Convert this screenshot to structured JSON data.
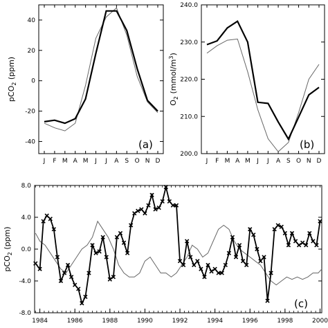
{
  "chart_data": [
    {
      "type": "line",
      "panel_tag": "(a)",
      "ylabel_main": "pCO",
      "ylabel_sub": "2",
      "ylabel_tail": " (ppm)",
      "categories": [
        "J",
        "F",
        "M",
        "A",
        "M",
        "J",
        "J",
        "A",
        "S",
        "O",
        "N",
        "D"
      ],
      "ylim": [
        -48,
        50
      ],
      "yticks": [
        -40,
        -20,
        0,
        20,
        40
      ],
      "series": [
        {
          "style": "thick",
          "color": "#000000",
          "values": [
            -27,
            -26,
            -28,
            -25,
            -12,
            18,
            46,
            46,
            33,
            8,
            -13,
            -20
          ]
        },
        {
          "style": "thin",
          "color": "#666666",
          "values": [
            -28,
            -31,
            -33,
            -28,
            -3,
            28,
            42,
            48,
            30,
            3,
            -14,
            -21
          ]
        }
      ]
    },
    {
      "type": "line",
      "panel_tag": "(b)",
      "ylabel_main": "O",
      "ylabel_sub": "2",
      "ylabel_tail": " (mmol/m",
      "ylabel_sup": "3",
      "ylabel_end": ")",
      "categories": [
        "J",
        "F",
        "M",
        "A",
        "M",
        "J",
        "J",
        "A",
        "S",
        "O",
        "N",
        "D"
      ],
      "ylim": [
        200,
        240
      ],
      "yticks": [
        200.0,
        210.0,
        220.0,
        230.0,
        240.0
      ],
      "ytick_labels": [
        "200.0",
        "210.0",
        "220.0",
        "230.0",
        "240.0"
      ],
      "series": [
        {
          "style": "thick",
          "color": "#000000",
          "values": [
            229.3,
            230.3,
            233.8,
            235.6,
            230.0,
            213.8,
            213.5,
            208.5,
            203.9,
            209.8,
            215.8,
            217.8
          ]
        },
        {
          "style": "thin",
          "color": "#666666",
          "values": [
            227.0,
            229.0,
            230.5,
            230.8,
            222.0,
            211.8,
            204.0,
            200.5,
            203.0,
            211.0,
            220.0,
            224.0
          ]
        }
      ]
    },
    {
      "type": "line",
      "panel_tag": "(c)",
      "ylabel_main": "pCO",
      "ylabel_sub": "2",
      "ylabel_tail": " (ppm)",
      "xlim": [
        1983.7,
        2000.1
      ],
      "ylim": [
        -8,
        8
      ],
      "xticks": [
        1984,
        1986,
        1988,
        1990,
        1992,
        1994,
        1996,
        1998,
        2000
      ],
      "yticks": [
        -8,
        -4,
        0,
        4,
        8
      ],
      "ytick_labels": [
        "-8.0",
        "-4.0",
        "0.0",
        "4.0",
        "8.0"
      ],
      "series": [
        {
          "style": "marked",
          "color": "#000000",
          "x": [
            1983.75,
            1984.0,
            1984.2,
            1984.4,
            1984.6,
            1984.8,
            1985.0,
            1985.2,
            1985.4,
            1985.6,
            1985.8,
            1986.0,
            1986.2,
            1986.4,
            1986.6,
            1986.8,
            1987.0,
            1987.2,
            1987.4,
            1987.6,
            1987.8,
            1988.0,
            1988.2,
            1988.4,
            1988.6,
            1988.8,
            1989.0,
            1989.2,
            1989.4,
            1989.6,
            1989.8,
            1990.0,
            1990.2,
            1990.4,
            1990.6,
            1990.8,
            1991.0,
            1991.2,
            1991.4,
            1991.6,
            1991.8,
            1992.0,
            1992.2,
            1992.4,
            1992.6,
            1992.8,
            1993.0,
            1993.2,
            1993.4,
            1993.6,
            1993.8,
            1994.0,
            1994.2,
            1994.4,
            1994.6,
            1994.8,
            1995.0,
            1995.2,
            1995.4,
            1995.6,
            1995.8,
            1996.0,
            1996.2,
            1996.4,
            1996.6,
            1996.8,
            1997.0,
            1997.2,
            1997.4,
            1997.6,
            1997.8,
            1998.0,
            1998.2,
            1998.4,
            1998.6,
            1998.8,
            1999.0,
            1999.2,
            1999.4,
            1999.6,
            1999.8,
            2000.0
          ],
          "y": [
            -1.8,
            -2.5,
            3.5,
            4.2,
            3.8,
            2.5,
            -1.0,
            -4.0,
            -3.0,
            -2.0,
            -3.5,
            -4.5,
            -5.0,
            -6.8,
            -6.0,
            -3.0,
            0.5,
            -0.5,
            -0.3,
            1.5,
            -1.0,
            -3.8,
            -3.5,
            1.5,
            2.0,
            0.8,
            -0.5,
            3.0,
            4.5,
            4.8,
            5.0,
            4.5,
            5.5,
            6.8,
            5.0,
            5.2,
            6.0,
            7.8,
            6.0,
            5.5,
            5.5,
            -1.5,
            -2.0,
            1.0,
            -1.0,
            -2.0,
            -1.5,
            -2.5,
            -3.5,
            -2.0,
            -2.8,
            -2.5,
            -3.0,
            -3.0,
            -2.0,
            -0.5,
            1.5,
            -1.0,
            0.5,
            -1.5,
            -2.0,
            2.5,
            1.8,
            0.0,
            -1.5,
            -1.0,
            -6.5,
            -3.0,
            2.5,
            3.0,
            2.8,
            2.0,
            0.5,
            2.0,
            1.0,
            0.5,
            0.8,
            0.5,
            2.0,
            1.0,
            0.5,
            3.5
          ]
        },
        {
          "style": "thin",
          "color": "#666666",
          "x": [
            1983.75,
            1984.0,
            1984.3,
            1984.6,
            1984.9,
            1985.2,
            1985.5,
            1985.8,
            1986.1,
            1986.4,
            1986.7,
            1987.0,
            1987.3,
            1987.6,
            1987.9,
            1988.2,
            1988.5,
            1988.8,
            1989.1,
            1989.4,
            1989.7,
            1990.0,
            1990.3,
            1990.6,
            1990.9,
            1991.2,
            1991.5,
            1991.8,
            1992.1,
            1992.4,
            1992.7,
            1993.0,
            1993.3,
            1993.6,
            1993.9,
            1994.2,
            1994.5,
            1994.8,
            1995.1,
            1995.4,
            1995.7,
            1996.0,
            1996.3,
            1996.6,
            1996.9,
            1997.2,
            1997.5,
            1997.8,
            1998.1,
            1998.4,
            1998.7,
            1999.0,
            1999.3,
            1999.6,
            1999.9,
            2000.1
          ],
          "y": [
            2.0,
            1.0,
            0.5,
            -0.5,
            -1.5,
            -2.5,
            -3.0,
            -2.0,
            -1.0,
            0.0,
            0.5,
            1.5,
            3.5,
            2.5,
            1.5,
            0.0,
            -2.0,
            -3.0,
            -3.5,
            -3.5,
            -3.0,
            -1.5,
            -1.0,
            -2.0,
            -3.0,
            -3.0,
            -3.5,
            -3.0,
            -2.0,
            -1.0,
            0.5,
            0.0,
            -1.0,
            -0.5,
            1.0,
            2.5,
            3.0,
            2.5,
            1.0,
            0.0,
            -0.5,
            -1.0,
            -1.5,
            -2.0,
            -3.0,
            -4.0,
            -4.5,
            -4.0,
            -3.5,
            -3.8,
            -3.5,
            -3.8,
            -3.5,
            -3.0,
            -3.0,
            -2.5
          ]
        }
      ]
    }
  ]
}
